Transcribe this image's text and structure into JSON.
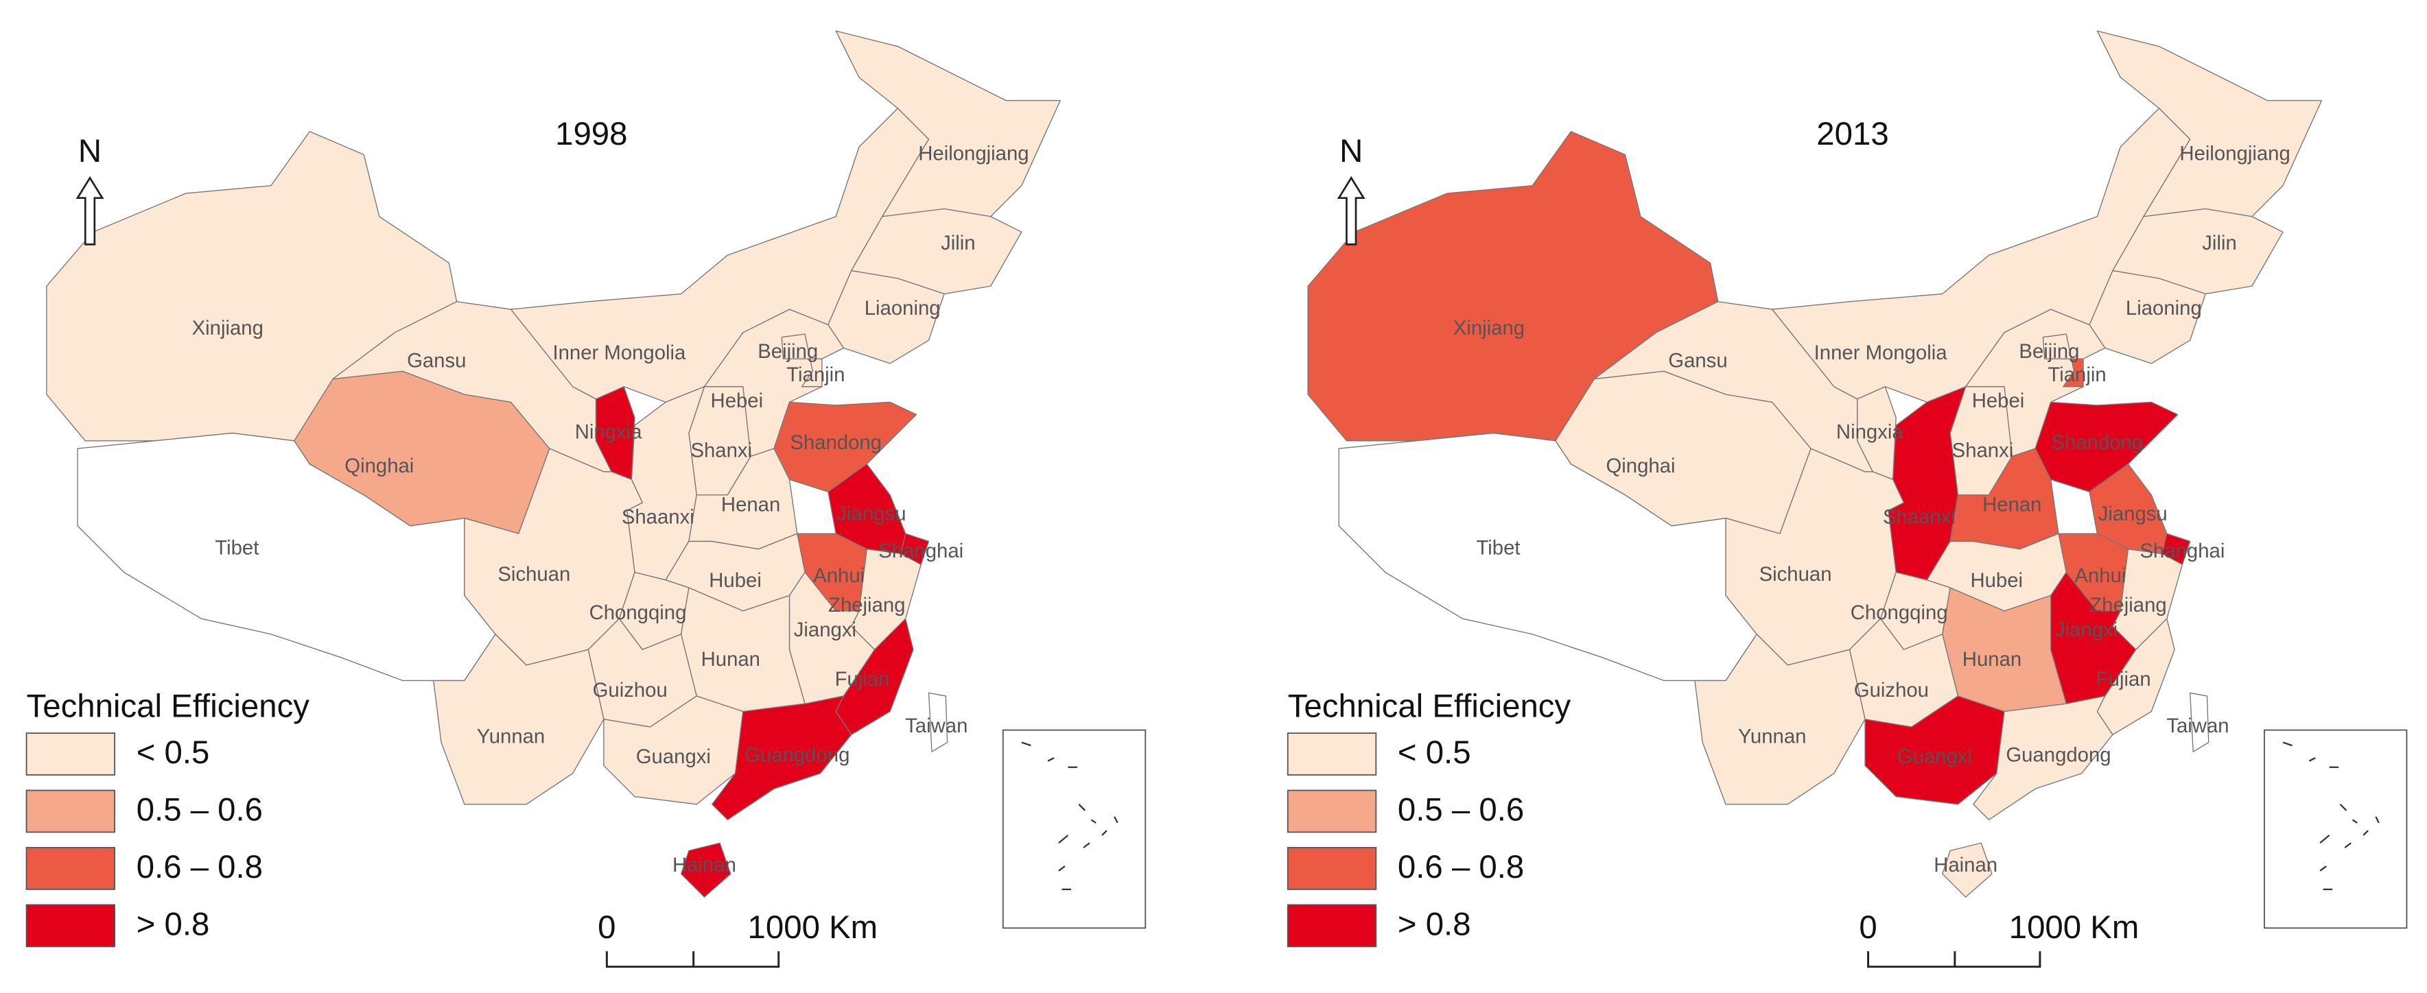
{
  "maps": [
    {
      "title": "1998",
      "north": "N",
      "legend": {
        "title": "Technical Efficiency",
        "items": [
          {
            "label": "< 0.5",
            "color": "#fde8d6"
          },
          {
            "label": "0.5 – 0.6",
            "color": "#f5a98a"
          },
          {
            "label": "0.6 – 0.8",
            "color": "#ec5a43"
          },
          {
            "label": "> 0.8",
            "color": "#e2001a"
          }
        ]
      },
      "scale": {
        "start": "0",
        "end": "1000 Km"
      },
      "provinces": [
        {
          "name": "Xinjiang",
          "class": 0
        },
        {
          "name": "Tibet",
          "class": null
        },
        {
          "name": "Qinghai",
          "class": 1
        },
        {
          "name": "Gansu",
          "class": 0
        },
        {
          "name": "Inner Mongolia",
          "class": 0
        },
        {
          "name": "Ningxia",
          "class": 3
        },
        {
          "name": "Heilongjiang",
          "class": 0
        },
        {
          "name": "Jilin",
          "class": 0
        },
        {
          "name": "Liaoning",
          "class": 0
        },
        {
          "name": "Beijing",
          "class": 0
        },
        {
          "name": "Tianjin",
          "class": 0
        },
        {
          "name": "Hebei",
          "class": 0
        },
        {
          "name": "Shanxi",
          "class": 0
        },
        {
          "name": "Shaanxi",
          "class": 0
        },
        {
          "name": "Shandong",
          "class": 2
        },
        {
          "name": "Henan",
          "class": 0
        },
        {
          "name": "Jiangsu",
          "class": 3
        },
        {
          "name": "Shanghai",
          "class": 3
        },
        {
          "name": "Anhui",
          "class": 2
        },
        {
          "name": "Hubei",
          "class": 0
        },
        {
          "name": "Chongqing",
          "class": 0
        },
        {
          "name": "Sichuan",
          "class": 0
        },
        {
          "name": "Zhejiang",
          "class": 0
        },
        {
          "name": "Jiangxi",
          "class": 0
        },
        {
          "name": "Hunan",
          "class": 0
        },
        {
          "name": "Fujian",
          "class": 3
        },
        {
          "name": "Guizhou",
          "class": 0
        },
        {
          "name": "Yunnan",
          "class": 0
        },
        {
          "name": "Guangxi",
          "class": 0
        },
        {
          "name": "Guangdong",
          "class": 3
        },
        {
          "name": "Hainan",
          "class": 3
        },
        {
          "name": "Taiwan",
          "class": null
        }
      ]
    },
    {
      "title": "2013",
      "north": "N",
      "legend": {
        "title": "Technical Efficiency",
        "items": [
          {
            "label": "< 0.5",
            "color": "#fde8d6"
          },
          {
            "label": "0.5 – 0.6",
            "color": "#f5a98a"
          },
          {
            "label": "0.6 – 0.8",
            "color": "#ec5a43"
          },
          {
            "label": "> 0.8",
            "color": "#e2001a"
          }
        ]
      },
      "scale": {
        "start": "0",
        "end": "1000 Km"
      },
      "provinces": [
        {
          "name": "Xinjiang",
          "class": 2
        },
        {
          "name": "Tibet",
          "class": null
        },
        {
          "name": "Qinghai",
          "class": 0
        },
        {
          "name": "Gansu",
          "class": 0
        },
        {
          "name": "Inner Mongolia",
          "class": 0
        },
        {
          "name": "Ningxia",
          "class": 0
        },
        {
          "name": "Heilongjiang",
          "class": 0
        },
        {
          "name": "Jilin",
          "class": 0
        },
        {
          "name": "Liaoning",
          "class": 0
        },
        {
          "name": "Beijing",
          "class": 0
        },
        {
          "name": "Tianjin",
          "class": 2
        },
        {
          "name": "Hebei",
          "class": 0
        },
        {
          "name": "Shanxi",
          "class": 0
        },
        {
          "name": "Shaanxi",
          "class": 3
        },
        {
          "name": "Shandong",
          "class": 3
        },
        {
          "name": "Henan",
          "class": 2
        },
        {
          "name": "Jiangsu",
          "class": 2
        },
        {
          "name": "Shanghai",
          "class": 3
        },
        {
          "name": "Anhui",
          "class": 2
        },
        {
          "name": "Hubei",
          "class": 0
        },
        {
          "name": "Chongqing",
          "class": 0
        },
        {
          "name": "Sichuan",
          "class": 0
        },
        {
          "name": "Zhejiang",
          "class": 0
        },
        {
          "name": "Jiangxi",
          "class": 3
        },
        {
          "name": "Hunan",
          "class": 1
        },
        {
          "name": "Fujian",
          "class": 0
        },
        {
          "name": "Guizhou",
          "class": 0
        },
        {
          "name": "Yunnan",
          "class": 0
        },
        {
          "name": "Guangxi",
          "class": 3
        },
        {
          "name": "Guangdong",
          "class": 0
        },
        {
          "name": "Hainan",
          "class": 0
        },
        {
          "name": "Taiwan",
          "class": null
        }
      ]
    }
  ]
}
